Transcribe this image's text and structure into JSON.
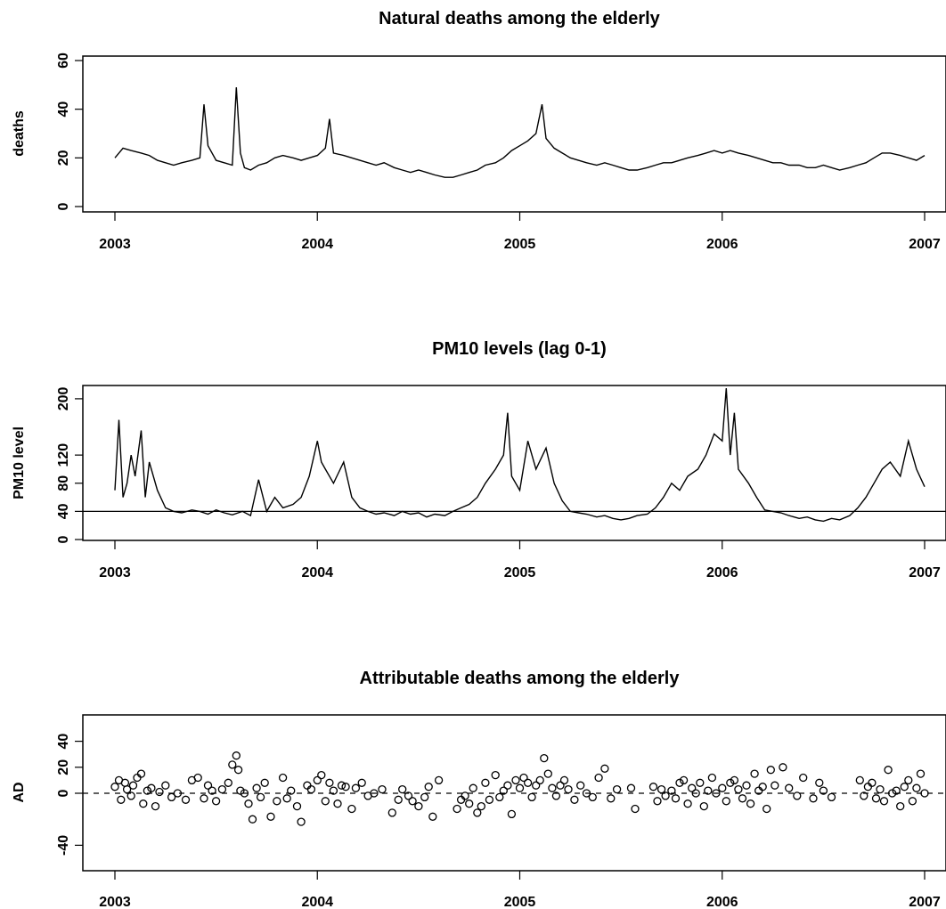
{
  "chart_data": [
    {
      "type": "line",
      "title": "Natural deaths among the elderly",
      "ylabel": "deaths",
      "xlabel": "",
      "xlim": [
        2003.0,
        2007.0
      ],
      "ylim": [
        0,
        60
      ],
      "x_ticks": [
        "2003",
        "2004",
        "2005",
        "2006",
        "2007"
      ],
      "y_ticks": [
        "0",
        "20",
        "40",
        "60"
      ],
      "grid": false,
      "series": [
        {
          "x": [
            2003.0,
            2003.04,
            2003.08,
            2003.13,
            2003.17,
            2003.21,
            2003.25,
            2003.29,
            2003.33,
            2003.38,
            2003.42,
            2003.44,
            2003.46,
            2003.5,
            2003.54,
            2003.58,
            2003.6,
            2003.62,
            2003.64,
            2003.67,
            2003.71,
            2003.75,
            2003.79,
            2003.83,
            2003.88,
            2003.92,
            2003.96,
            2004.0,
            2004.04,
            2004.06,
            2004.08,
            2004.13,
            2004.17,
            2004.21,
            2004.25,
            2004.29,
            2004.33,
            2004.38,
            2004.42,
            2004.46,
            2004.5,
            2004.54,
            2004.58,
            2004.63,
            2004.67,
            2004.71,
            2004.75,
            2004.79,
            2004.83,
            2004.88,
            2004.92,
            2004.96,
            2005.0,
            2005.04,
            2005.08,
            2005.11,
            2005.13,
            2005.17,
            2005.21,
            2005.25,
            2005.29,
            2005.33,
            2005.38,
            2005.42,
            2005.46,
            2005.5,
            2005.54,
            2005.58,
            2005.63,
            2005.67,
            2005.71,
            2005.75,
            2005.79,
            2005.83,
            2005.88,
            2005.92,
            2005.96,
            2006.0,
            2006.04,
            2006.08,
            2006.13,
            2006.17,
            2006.21,
            2006.25,
            2006.29,
            2006.33,
            2006.38,
            2006.42,
            2006.46,
            2006.5,
            2006.54,
            2006.58,
            2006.63,
            2006.67,
            2006.71,
            2006.75,
            2006.79,
            2006.83,
            2006.88,
            2006.92,
            2006.96,
            2007.0
          ],
          "y": [
            20,
            24,
            23,
            22,
            21,
            19,
            18,
            17,
            18,
            19,
            20,
            42,
            25,
            19,
            18,
            17,
            49,
            22,
            16,
            15,
            17,
            18,
            20,
            21,
            20,
            19,
            20,
            21,
            24,
            36,
            22,
            21,
            20,
            19,
            18,
            17,
            18,
            16,
            15,
            14,
            15,
            14,
            13,
            12,
            12,
            13,
            14,
            15,
            17,
            18,
            20,
            23,
            25,
            27,
            30,
            42,
            28,
            24,
            22,
            20,
            19,
            18,
            17,
            18,
            17,
            16,
            15,
            15,
            16,
            17,
            18,
            18,
            19,
            20,
            21,
            22,
            23,
            22,
            23,
            22,
            21,
            20,
            19,
            18,
            18,
            17,
            17,
            16,
            16,
            17,
            16,
            15,
            16,
            17,
            18,
            20,
            22,
            22,
            21,
            20,
            19,
            21
          ]
        }
      ]
    },
    {
      "type": "line",
      "title": "PM10 levels (lag 0-1)",
      "ylabel": "PM10 level",
      "xlabel": "",
      "xlim": [
        2003.0,
        2007.0
      ],
      "ylim": [
        0,
        210
      ],
      "x_ticks": [
        "2003",
        "2004",
        "2005",
        "2006",
        "2007"
      ],
      "y_ticks": [
        "0",
        "40",
        "80",
        "120",
        "200"
      ],
      "reference_line": 40,
      "grid": false,
      "series": [
        {
          "x": [
            2003.0,
            2003.02,
            2003.04,
            2003.06,
            2003.08,
            2003.1,
            2003.13,
            2003.15,
            2003.17,
            2003.21,
            2003.25,
            2003.29,
            2003.33,
            2003.38,
            2003.42,
            2003.46,
            2003.5,
            2003.54,
            2003.58,
            2003.63,
            2003.67,
            2003.71,
            2003.75,
            2003.79,
            2003.83,
            2003.88,
            2003.92,
            2003.96,
            2004.0,
            2004.02,
            2004.04,
            2004.08,
            2004.13,
            2004.17,
            2004.21,
            2004.25,
            2004.29,
            2004.33,
            2004.38,
            2004.42,
            2004.46,
            2004.5,
            2004.54,
            2004.58,
            2004.63,
            2004.67,
            2004.71,
            2004.75,
            2004.79,
            2004.83,
            2004.88,
            2004.92,
            2004.94,
            2004.96,
            2005.0,
            2005.04,
            2005.08,
            2005.13,
            2005.17,
            2005.21,
            2005.25,
            2005.29,
            2005.33,
            2005.38,
            2005.42,
            2005.46,
            2005.5,
            2005.54,
            2005.58,
            2005.63,
            2005.67,
            2005.71,
            2005.75,
            2005.79,
            2005.83,
            2005.88,
            2005.92,
            2005.96,
            2006.0,
            2006.02,
            2006.04,
            2006.06,
            2006.08,
            2006.13,
            2006.17,
            2006.21,
            2006.25,
            2006.29,
            2006.33,
            2006.38,
            2006.42,
            2006.46,
            2006.5,
            2006.54,
            2006.58,
            2006.63,
            2006.67,
            2006.71,
            2006.75,
            2006.79,
            2006.83,
            2006.88,
            2006.92,
            2006.96,
            2007.0
          ],
          "y": [
            70,
            170,
            60,
            80,
            120,
            90,
            155,
            60,
            110,
            70,
            45,
            40,
            38,
            42,
            40,
            36,
            42,
            38,
            35,
            40,
            34,
            85,
            40,
            60,
            45,
            50,
            60,
            90,
            140,
            110,
            100,
            80,
            110,
            60,
            45,
            40,
            36,
            38,
            34,
            40,
            36,
            38,
            32,
            36,
            34,
            40,
            45,
            50,
            60,
            80,
            100,
            120,
            180,
            90,
            70,
            140,
            100,
            130,
            80,
            55,
            40,
            38,
            36,
            32,
            34,
            30,
            28,
            30,
            34,
            36,
            45,
            60,
            80,
            70,
            90,
            100,
            120,
            150,
            140,
            215,
            120,
            180,
            100,
            80,
            60,
            42,
            40,
            38,
            34,
            30,
            32,
            28,
            26,
            30,
            28,
            34,
            45,
            60,
            80,
            100,
            110,
            90,
            140,
            100,
            75
          ]
        }
      ]
    },
    {
      "type": "scatter",
      "title": "Attributable deaths among the elderly",
      "ylabel": "AD",
      "xlabel": "",
      "xlim": [
        2003.0,
        2007.0
      ],
      "ylim": [
        -50,
        50
      ],
      "x_ticks": [
        "2003",
        "2004",
        "2005",
        "2006",
        "2007"
      ],
      "y_ticks": [
        "-40",
        "0",
        "20",
        "40"
      ],
      "reference_line": 0,
      "marker": "open-circle",
      "grid": false,
      "series": [
        {
          "x": [
            2003.0,
            2003.02,
            2003.03,
            2003.05,
            2003.06,
            2003.08,
            2003.09,
            2003.11,
            2003.13,
            2003.14,
            2003.16,
            2003.18,
            2003.2,
            2003.22,
            2003.25,
            2003.28,
            2003.31,
            2003.35,
            2003.38,
            2003.41,
            2003.44,
            2003.46,
            2003.48,
            2003.5,
            2003.53,
            2003.56,
            2003.58,
            2003.6,
            2003.61,
            2003.62,
            2003.64,
            2003.66,
            2003.68,
            2003.7,
            2003.72,
            2003.74,
            2003.77,
            2003.8,
            2003.83,
            2003.85,
            2003.87,
            2003.9,
            2003.92,
            2003.95,
            2003.97,
            2004.0,
            2004.02,
            2004.04,
            2004.06,
            2004.08,
            2004.1,
            2004.12,
            2004.14,
            2004.17,
            2004.19,
            2004.22,
            2004.25,
            2004.28,
            2004.32,
            2004.37,
            2004.4,
            2004.42,
            2004.45,
            2004.47,
            2004.5,
            2004.53,
            2004.55,
            2004.57,
            2004.6,
            2004.69,
            2004.71,
            2004.73,
            2004.75,
            2004.77,
            2004.79,
            2004.81,
            2004.83,
            2004.85,
            2004.88,
            2004.9,
            2004.92,
            2004.94,
            2004.96,
            2004.98,
            2005.0,
            2005.02,
            2005.04,
            2005.06,
            2005.08,
            2005.1,
            2005.12,
            2005.14,
            2005.16,
            2005.18,
            2005.2,
            2005.22,
            2005.24,
            2005.27,
            2005.3,
            2005.33,
            2005.36,
            2005.39,
            2005.42,
            2005.45,
            2005.48,
            2005.55,
            2005.57,
            2005.66,
            2005.68,
            2005.7,
            2005.72,
            2005.75,
            2005.77,
            2005.79,
            2005.81,
            2005.83,
            2005.85,
            2005.87,
            2005.89,
            2005.91,
            2005.93,
            2005.95,
            2005.97,
            2006.0,
            2006.02,
            2006.04,
            2006.06,
            2006.08,
            2006.1,
            2006.12,
            2006.14,
            2006.16,
            2006.18,
            2006.2,
            2006.22,
            2006.24,
            2006.26,
            2006.3,
            2006.33,
            2006.37,
            2006.4,
            2006.45,
            2006.48,
            2006.5,
            2006.54,
            2006.68,
            2006.7,
            2006.72,
            2006.74,
            2006.76,
            2006.78,
            2006.8,
            2006.82,
            2006.84,
            2006.86,
            2006.88,
            2006.9,
            2006.92,
            2006.94,
            2006.96,
            2006.98,
            2007.0
          ],
          "y": [
            5,
            10,
            -5,
            8,
            3,
            -2,
            6,
            12,
            15,
            -8,
            2,
            4,
            -10,
            1,
            6,
            -3,
            0,
            -5,
            10,
            12,
            -4,
            6,
            2,
            -6,
            3,
            8,
            22,
            29,
            18,
            2,
            0,
            -8,
            -20,
            4,
            -3,
            8,
            -18,
            -6,
            12,
            -4,
            2,
            -10,
            -22,
            6,
            3,
            10,
            14,
            -6,
            8,
            2,
            -8,
            6,
            5,
            -12,
            4,
            8,
            -2,
            0,
            3,
            -15,
            -5,
            3,
            -2,
            -6,
            -10,
            -3,
            5,
            -18,
            10,
            -12,
            -5,
            -2,
            -8,
            4,
            -15,
            -10,
            8,
            -5,
            14,
            -3,
            2,
            6,
            -16,
            10,
            4,
            12,
            8,
            -3,
            6,
            10,
            27,
            15,
            4,
            -2,
            6,
            10,
            3,
            -5,
            6,
            0,
            -3,
            12,
            19,
            -4,
            3,
            4,
            -12,
            5,
            -6,
            3,
            -2,
            2,
            -4,
            8,
            10,
            -8,
            4,
            0,
            8,
            -10,
            2,
            12,
            0,
            4,
            -6,
            8,
            10,
            3,
            -4,
            6,
            -8,
            15,
            2,
            5,
            -12,
            18,
            6,
            20,
            4,
            -2,
            12,
            -4,
            8,
            2,
            -3,
            10,
            -2,
            5,
            8,
            -4,
            3,
            -6,
            18,
            0,
            2,
            -10,
            5,
            10,
            -6,
            4,
            15,
            0
          ]
        }
      ]
    }
  ]
}
